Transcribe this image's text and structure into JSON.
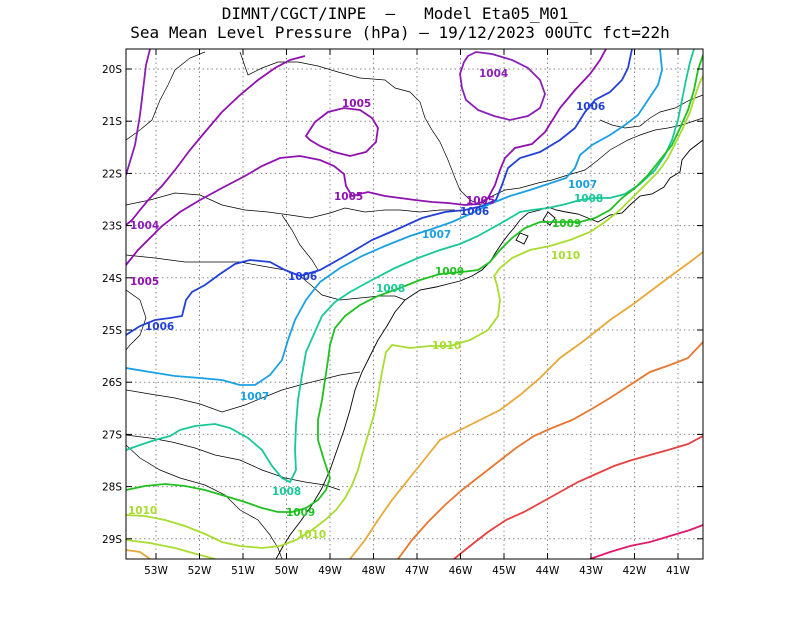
{
  "title": {
    "line1": "DIMNT/CGCT/INPE  —   Model Eta05_M01_",
    "line2": "Sea Mean Level Pressure (hPa) — 19/12/2023 00UTC fct=22h"
  },
  "axes": {
    "lon_labels": [
      "53W",
      "52W",
      "51W",
      "50W",
      "49W",
      "48W",
      "47W",
      "46W",
      "45W",
      "44W",
      "43W",
      "42W",
      "41W"
    ],
    "lat_labels": [
      "20S",
      "21S",
      "22S",
      "23S",
      "24S",
      "25S",
      "26S",
      "27S",
      "28S",
      "29S"
    ]
  },
  "colors": {
    "1004": "#8a1fb5",
    "1005": "#9010b0",
    "1006": "#2240d8",
    "1007": "#1aa0e0",
    "1008": "#18c898",
    "1009": "#20c020",
    "1010": "#a8dc30",
    "1011": "#e8a838",
    "1012": "#e87830",
    "1013": "#e84040",
    "1014": "#e0186e",
    "coast": "#000000",
    "grid": "#888888"
  },
  "contour_labels": [
    {
      "id": "1004-a",
      "text": "1004",
      "level": "1004"
    },
    {
      "id": "1004-b",
      "text": "1004",
      "level": "1004"
    },
    {
      "id": "1005-a",
      "text": "1005",
      "level": "1005"
    },
    {
      "id": "1005-b",
      "text": "1005",
      "level": "1005"
    },
    {
      "id": "1005-c",
      "text": "1005",
      "level": "1005"
    },
    {
      "id": "1005-d",
      "text": "1005",
      "level": "1005"
    },
    {
      "id": "1006-a",
      "text": "1006",
      "level": "1006"
    },
    {
      "id": "1006-b",
      "text": "1006",
      "level": "1006"
    },
    {
      "id": "1006-c",
      "text": "1006",
      "level": "1006"
    },
    {
      "id": "1006-d",
      "text": "1006",
      "level": "1006"
    },
    {
      "id": "1007-a",
      "text": "1007",
      "level": "1007"
    },
    {
      "id": "1007-b",
      "text": "1007",
      "level": "1007"
    },
    {
      "id": "1007-c",
      "text": "1007",
      "level": "1007"
    },
    {
      "id": "1008-a",
      "text": "1008",
      "level": "1008"
    },
    {
      "id": "1008-b",
      "text": "1008",
      "level": "1008"
    },
    {
      "id": "1008-c",
      "text": "1008",
      "level": "1008"
    },
    {
      "id": "1009-a",
      "text": "1009",
      "level": "1009"
    },
    {
      "id": "1009-b",
      "text": "1009",
      "level": "1009"
    },
    {
      "id": "1009-c",
      "text": "1009",
      "level": "1009"
    },
    {
      "id": "1010-a",
      "text": "1010",
      "level": "1010"
    },
    {
      "id": "1010-b",
      "text": "1010",
      "level": "1010"
    },
    {
      "id": "1010-c",
      "text": "1010",
      "level": "1010"
    },
    {
      "id": "1010-d",
      "text": "1010",
      "level": "1010"
    }
  ]
}
